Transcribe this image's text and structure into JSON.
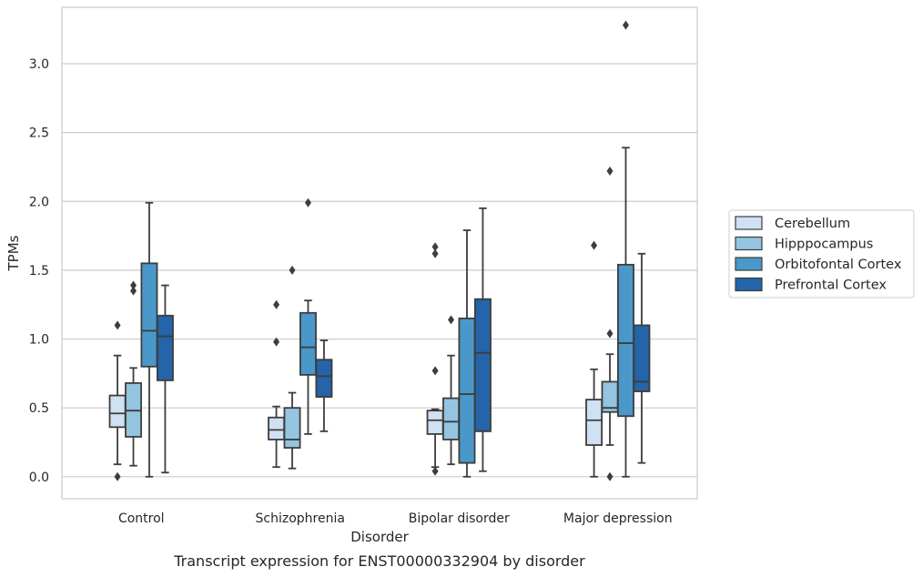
{
  "chart_data": {
    "type": "box",
    "xlabel": "Disorder",
    "ylabel": "TPMs",
    "caption": "Transcript expression for ENST00000332904 by disorder",
    "ylim": [
      -0.16,
      3.41
    ],
    "yticks": [
      "0.0",
      "0.5",
      "1.0",
      "1.5",
      "2.0",
      "2.5",
      "3.0"
    ],
    "grid": "horizontal",
    "legend_position": "right",
    "categories": [
      "Control",
      "Schizophrenia",
      "Bipolar disorder",
      "Major depression"
    ],
    "series": [
      {
        "name": "Cerebellum",
        "color": "#cfe1f2",
        "boxes": [
          {
            "whislo": 0.09,
            "q1": 0.36,
            "med": 0.46,
            "q3": 0.59,
            "whishi": 0.88,
            "fliers": [
              1.1,
              0.0
            ]
          },
          {
            "whislo": 0.07,
            "q1": 0.27,
            "med": 0.34,
            "q3": 0.43,
            "whishi": 0.51,
            "fliers": [
              1.25,
              0.98
            ]
          },
          {
            "whislo": 0.07,
            "q1": 0.31,
            "med": 0.41,
            "q3": 0.48,
            "whishi": 0.49,
            "fliers": [
              1.67,
              1.62,
              0.77,
              0.04
            ]
          },
          {
            "whislo": 0.0,
            "q1": 0.23,
            "med": 0.41,
            "q3": 0.56,
            "whishi": 0.78,
            "fliers": [
              1.68
            ]
          }
        ]
      },
      {
        "name": "Hipppocampus",
        "color": "#94c4df",
        "boxes": [
          {
            "whislo": 0.08,
            "q1": 0.29,
            "med": 0.48,
            "q3": 0.68,
            "whishi": 0.79,
            "fliers": [
              1.39,
              1.35
            ]
          },
          {
            "whislo": 0.06,
            "q1": 0.21,
            "med": 0.27,
            "q3": 0.5,
            "whishi": 0.61,
            "fliers": [
              1.5
            ]
          },
          {
            "whislo": 0.09,
            "q1": 0.27,
            "med": 0.4,
            "q3": 0.57,
            "whishi": 0.88,
            "fliers": [
              1.14
            ]
          },
          {
            "whislo": 0.23,
            "q1": 0.47,
            "med": 0.5,
            "q3": 0.69,
            "whishi": 0.89,
            "fliers": [
              2.22,
              1.04,
              0.0
            ]
          }
        ]
      },
      {
        "name": "Orbitofontal Cortex",
        "color": "#4a98c9",
        "boxes": [
          {
            "whislo": 0.0,
            "q1": 0.8,
            "med": 1.06,
            "q3": 1.55,
            "whishi": 1.99,
            "fliers": []
          },
          {
            "whislo": 0.31,
            "q1": 0.74,
            "med": 0.94,
            "q3": 1.19,
            "whishi": 1.28,
            "fliers": [
              1.99
            ]
          },
          {
            "whislo": 0.0,
            "q1": 0.1,
            "med": 0.6,
            "q3": 1.15,
            "whishi": 1.79,
            "fliers": []
          },
          {
            "whislo": 0.0,
            "q1": 0.44,
            "med": 0.97,
            "q3": 1.54,
            "whishi": 2.39,
            "fliers": [
              3.28
            ]
          }
        ]
      },
      {
        "name": "Prefrontal Cortex",
        "color": "#2464a8",
        "boxes": [
          {
            "whislo": 0.03,
            "q1": 0.7,
            "med": 1.02,
            "q3": 1.17,
            "whishi": 1.39,
            "fliers": []
          },
          {
            "whislo": 0.33,
            "q1": 0.58,
            "med": 0.73,
            "q3": 0.85,
            "whishi": 0.99,
            "fliers": []
          },
          {
            "whislo": 0.04,
            "q1": 0.33,
            "med": 0.9,
            "q3": 1.29,
            "whishi": 1.95,
            "fliers": []
          },
          {
            "whislo": 0.1,
            "q1": 0.62,
            "med": 0.69,
            "q3": 1.1,
            "whishi": 1.62,
            "fliers": []
          }
        ]
      }
    ]
  }
}
